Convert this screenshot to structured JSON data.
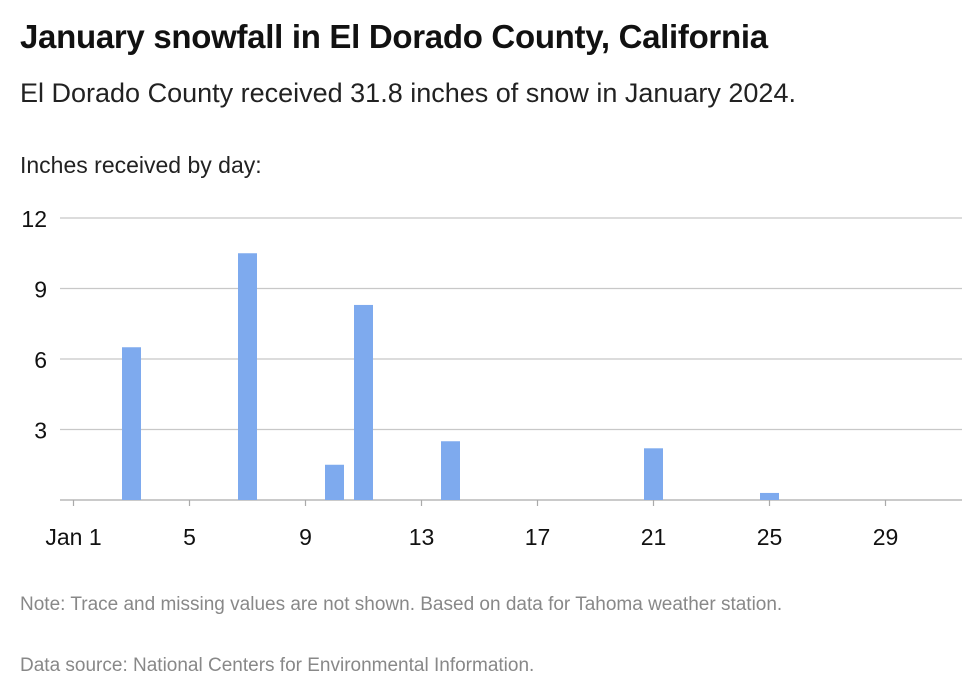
{
  "chart_data": {
    "type": "bar",
    "title": "January snowfall in El Dorado County, California",
    "subtitle": "El Dorado County received 31.8 inches of snow in January 2024.",
    "ylabel": "Inches received by day:",
    "xlabel": "",
    "x": [
      3,
      7,
      10,
      11,
      14,
      21,
      25
    ],
    "values": [
      6.5,
      10.5,
      1.5,
      8.3,
      2.5,
      2.2,
      0.3
    ],
    "xlim": [
      1,
      31
    ],
    "ylim": [
      0,
      12
    ],
    "y_ticks": [
      3,
      6,
      9,
      12
    ],
    "x_ticks": [
      {
        "value": 1,
        "label": "Jan 1"
      },
      {
        "value": 5,
        "label": "5"
      },
      {
        "value": 9,
        "label": "9"
      },
      {
        "value": 13,
        "label": "13"
      },
      {
        "value": 17,
        "label": "17"
      },
      {
        "value": 21,
        "label": "21"
      },
      {
        "value": 25,
        "label": "25"
      },
      {
        "value": 29,
        "label": "29"
      }
    ],
    "grid": true,
    "bar_color": "#7eaaee",
    "grid_color": "#c8c8c8"
  },
  "footer": {
    "note": "Note: Trace and missing values are not shown. Based on data for Tahoma weather station.",
    "source": "Data source: National Centers for Environmental Information."
  }
}
